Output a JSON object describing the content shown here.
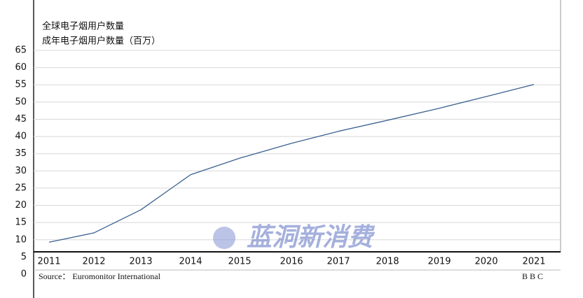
{
  "chart_data": {
    "type": "line",
    "title": "全球电子烟用户数量",
    "subtitle": "成年电子烟用户数量（百万）",
    "categories": [
      "2011",
      "2012",
      "2013",
      "2014",
      "2015",
      "2016",
      "2017",
      "2018",
      "2019",
      "2020",
      "2021"
    ],
    "series": [
      {
        "name": "成年电子烟用户数量",
        "color": "#3b6190",
        "values": [
          9.3,
          12,
          18.7,
          28.9,
          33.7,
          38,
          41.5,
          44.7,
          48.2,
          51.6,
          55.1
        ]
      }
    ],
    "ylim": [
      0,
      65
    ],
    "yticks": [
      0,
      5,
      10,
      15,
      20,
      25,
      30,
      35,
      40,
      45,
      50,
      55,
      60,
      65
    ],
    "grid": true,
    "source": "Source： Euromonitor International",
    "credit": "B B C",
    "watermark": "蓝洞新消费"
  }
}
